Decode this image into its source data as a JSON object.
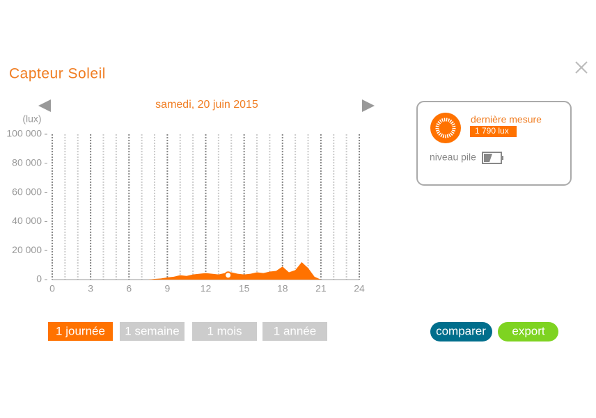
{
  "header": {
    "title": "Capteur Soleil"
  },
  "chart_data": {
    "type": "area",
    "subtitle": "samedi, 20 juin 2015",
    "y_label": "(lux)",
    "color": "#ff7200",
    "x": [
      0,
      1,
      2,
      3,
      4,
      5,
      6,
      7,
      7.5,
      8,
      8.5,
      9,
      9.5,
      10,
      10.5,
      11,
      11.5,
      12,
      12.5,
      13,
      13.5,
      14,
      14.5,
      15,
      15.5,
      16,
      16.5,
      17,
      17.5,
      18,
      18.5,
      19,
      19.5,
      20,
      20.5,
      21,
      22,
      23,
      24
    ],
    "values": [
      0,
      0,
      0,
      0,
      0,
      0,
      0,
      0,
      0,
      500,
      800,
      1500,
      2000,
      3000,
      2500,
      3500,
      4000,
      4500,
      4000,
      3500,
      4500,
      5000,
      4000,
      3500,
      4000,
      5000,
      4500,
      5500,
      6000,
      9000,
      5000,
      6500,
      12000,
      8000,
      2000,
      0,
      0,
      0,
      0
    ],
    "highlight": {
      "x": 13.75,
      "y": 3000
    },
    "xlim": [
      0,
      24
    ],
    "xticks": [
      0,
      3,
      6,
      9,
      12,
      15,
      18,
      21,
      24
    ],
    "ylim": [
      0,
      100000
    ],
    "yticks": [
      0,
      {
        "value": 20000,
        "label": "20 000"
      },
      {
        "value": 40000,
        "label": "40 000"
      },
      {
        "value": 60000,
        "label": "60 000"
      },
      {
        "value": 80000,
        "label": "80 000"
      },
      {
        "value": 100000,
        "label": "100 000"
      }
    ],
    "grid": true
  },
  "status": {
    "label": "dernière mesure",
    "value": "1 790 lux",
    "battery_label": "niveau pile"
  },
  "buttons": {
    "periods": [
      "1 journée",
      "1 semaine",
      "1 mois",
      "1 année"
    ],
    "compare": "comparer",
    "export": "export"
  }
}
